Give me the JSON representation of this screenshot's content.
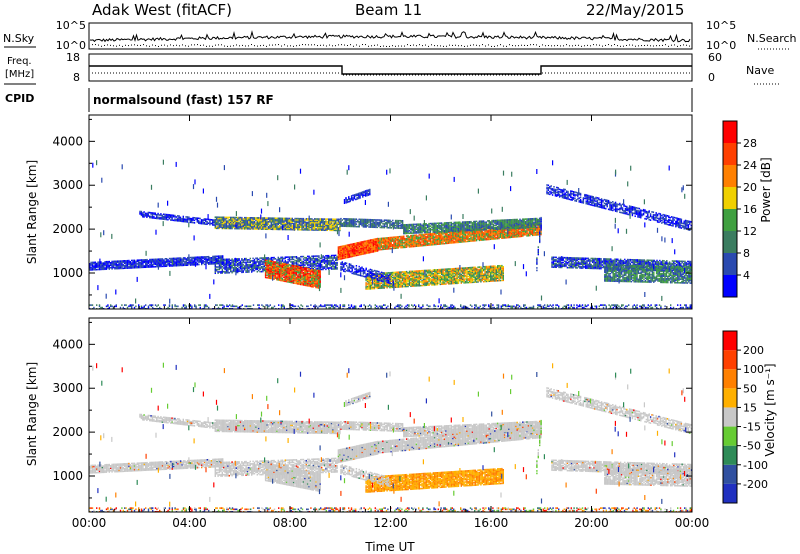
{
  "header": {
    "station": "Adak West (fitACF)",
    "beam": "Beam 11",
    "date": "22/May/2015"
  },
  "strip_panels": {
    "nsky_label": "N.Sky",
    "nsearch_label": "N.Search",
    "noise_ticks": [
      "10^5",
      "10^0"
    ],
    "freq_label": "Freq.",
    "freq_unit": "[MHz]",
    "freq_ticks": [
      "18",
      "8"
    ],
    "nave_label": "Nave",
    "nave_ticks": [
      "60",
      "0"
    ],
    "cpid_label": "CPID",
    "cpid_value": "normalsound (fast) 157 RF"
  },
  "chart_data": [
    {
      "type": "heatmap",
      "title": "Power",
      "xlabel": "",
      "ylabel": "Slant Range [km]",
      "xlim": [
        0,
        24
      ],
      "ylim": [
        180,
        4600
      ],
      "x_ticks": [
        "00:00",
        "04:00",
        "08:00",
        "12:00",
        "16:00",
        "20:00",
        "00:00"
      ],
      "y_ticks": [
        "1000",
        "2000",
        "3000",
        "4000"
      ],
      "colorbar": {
        "label": "Power [dB]",
        "ticks": [
          "4",
          "8",
          "12",
          "16",
          "20",
          "24",
          "28"
        ],
        "colors": [
          "#0000ff",
          "#2a4ab0",
          "#3b7d60",
          "#40a040",
          "#f0d000",
          "#ff8000",
          "#ff4000",
          "#ff0000"
        ]
      }
    },
    {
      "type": "heatmap",
      "title": "Velocity",
      "xlabel": "Time UT",
      "ylabel": "Slant Range [km]",
      "xlim": [
        0,
        24
      ],
      "ylim": [
        180,
        4600
      ],
      "x_ticks": [
        "00:00",
        "04:00",
        "08:00",
        "12:00",
        "16:00",
        "20:00",
        "00:00"
      ],
      "y_ticks": [
        "1000",
        "2000",
        "3000",
        "4000"
      ],
      "colorbar": {
        "label": "Velocity [m s⁻¹]",
        "ticks": [
          "200",
          "100",
          "50",
          "15",
          "-15",
          "-50",
          "-100",
          "-200"
        ],
        "colors": [
          "#2030c0",
          "#3050a0",
          "#2e8b57",
          "#66cc33",
          "#c8c8c8",
          "#ffb000",
          "#ff8000",
          "#ff4000",
          "#ff0000"
        ]
      }
    }
  ]
}
